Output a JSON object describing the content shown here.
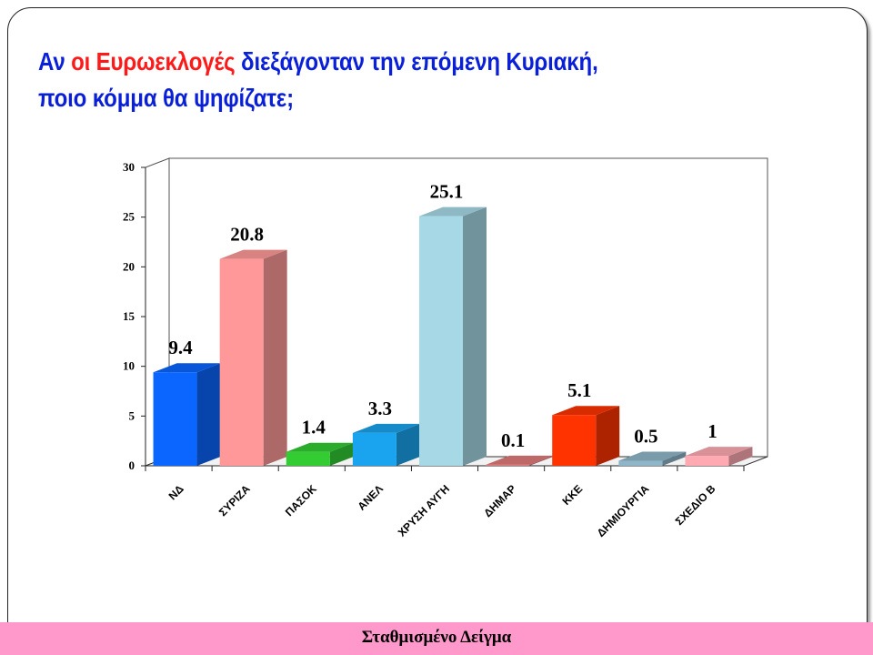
{
  "title": {
    "line1_pre": "Αν ",
    "line1_highlight": "οι Ευρωεκλογές",
    "line1_post": " διεξάγονταν την επόμενη Κυριακή,",
    "line2": "ποιο κόμμα θα ψηφίζατε;"
  },
  "footer": "Σταθμισμένο Δείγμα",
  "chart_data": {
    "type": "bar",
    "title": "",
    "xlabel": "",
    "ylabel": "",
    "ylim": [
      0,
      30
    ],
    "yticks": [
      0,
      5,
      10,
      15,
      20,
      25,
      30
    ],
    "categories": [
      "ΝΔ",
      "ΣΥΡΙΖΑ",
      "ΠΑΣΟΚ",
      "ΑΝΕΛ",
      "ΧΡΥΣΗ ΑΥΓΗ",
      "ΔΗΜΑΡ",
      "ΚΚΕ",
      "ΔΗΜΙΟΥΡΓΙΑ",
      "ΣΧΕΔΙΟ Β"
    ],
    "values": [
      9.4,
      20.8,
      1.4,
      3.3,
      25.1,
      0.1,
      5.1,
      0.5,
      1
    ],
    "value_labels": [
      "9.4",
      "20.8",
      "1.4",
      "3.3",
      "25.1",
      "0.1",
      "5.1",
      "0.5",
      "1"
    ],
    "colors": [
      "#0a66ff",
      "#ff9999",
      "#33cc33",
      "#1aa3ee",
      "#a6d8e6",
      "#e07a7a",
      "#ff3300",
      "#8fb6c8",
      "#ffaab3"
    ],
    "grid": false,
    "legend": "none"
  }
}
